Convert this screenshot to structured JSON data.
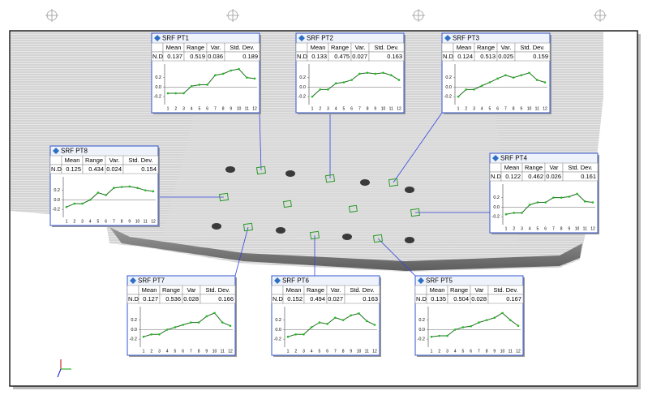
{
  "panels": [
    {
      "title": "SRF PT1",
      "headers": [
        "Mean",
        "Range",
        "Var.",
        "Std. Dev."
      ],
      "row_label": "N.D.",
      "row": [
        "0.137",
        "0.519",
        "0.036",
        "0.189"
      ],
      "chart": {
        "type": "line",
        "x": [
          1,
          2,
          3,
          4,
          5,
          6,
          7,
          8,
          9,
          10,
          11,
          12
        ],
        "values": [
          -0.13,
          -0.13,
          -0.13,
          0.02,
          0.05,
          0.05,
          0.25,
          0.28,
          0.35,
          0.38,
          0.2,
          0.18
        ],
        "color": "#1f6b1f",
        "ylim": [
          -0.3,
          0.45
        ],
        "yticks": [
          -0.2,
          {
            "value": 0,
            "label": "0.0"
          },
          0.2
        ]
      }
    },
    {
      "title": "SRF PT2",
      "headers": [
        "Mean",
        "Range",
        "Var.",
        "Std. Dev."
      ],
      "row_label": "N.D.",
      "row": [
        "0.133",
        "0.475",
        "0.027",
        "0.163"
      ],
      "chart": {
        "type": "line",
        "x": [
          1,
          2,
          3,
          4,
          5,
          6,
          7,
          8,
          9,
          10,
          11,
          12
        ],
        "values": [
          -0.2,
          -0.05,
          -0.05,
          0.08,
          0.1,
          0.15,
          0.28,
          0.3,
          0.28,
          0.3,
          0.25,
          0.15
        ],
        "color": "#1f6b1f",
        "ylim": [
          -0.3,
          0.45
        ],
        "yticks": [
          -0.2,
          {
            "value": 0,
            "label": "0.0"
          },
          0.2
        ]
      }
    },
    {
      "title": "SRF PT3",
      "headers": [
        "Mean",
        "Range",
        "Var.",
        "Std. Dev."
      ],
      "row_label": "N.D.",
      "row": [
        "0.124",
        "0.513",
        "0.025",
        "0.159"
      ],
      "chart": {
        "type": "line",
        "x": [
          1,
          2,
          3,
          4,
          5,
          6,
          7,
          8,
          9,
          10,
          11,
          12
        ],
        "values": [
          -0.2,
          -0.05,
          -0.05,
          0.03,
          0.1,
          0.18,
          0.25,
          0.2,
          0.25,
          0.3,
          0.15,
          0.1
        ],
        "color": "#1f6b1f",
        "ylim": [
          -0.3,
          0.45
        ],
        "yticks": [
          -0.2,
          {
            "value": 0,
            "label": "0.0"
          },
          0.2
        ]
      }
    },
    {
      "title": "SRF PT8",
      "headers": [
        "Mean",
        "Range",
        "Var.",
        "Std. Dev."
      ],
      "row_label": "N.D.",
      "row": [
        "0.125",
        "0.434",
        "0.024",
        "0.154"
      ],
      "chart": {
        "type": "line",
        "x": [
          1,
          2,
          3,
          4,
          5,
          6,
          7,
          8,
          9,
          10,
          11,
          12
        ],
        "values": [
          -0.15,
          -0.08,
          -0.08,
          0.0,
          0.15,
          0.1,
          0.25,
          0.27,
          0.28,
          0.25,
          0.2,
          0.18
        ],
        "color": "#1f6b1f",
        "ylim": [
          -0.3,
          0.45
        ],
        "yticks": [
          -0.2,
          {
            "value": 0,
            "label": "0.0"
          },
          0.2
        ]
      }
    },
    {
      "title": "SRF PT4",
      "headers": [
        "Mean",
        "Range",
        "Var",
        "Std. Dev."
      ],
      "row_label": "N.D.",
      "row": [
        "0.122",
        "0.462",
        "0.026",
        "0.161"
      ],
      "chart": {
        "type": "line",
        "x": [
          1,
          2,
          3,
          4,
          5,
          6,
          7,
          8,
          9,
          10,
          11,
          12
        ],
        "values": [
          -0.15,
          -0.12,
          -0.12,
          0.05,
          0.1,
          0.1,
          0.2,
          0.2,
          0.22,
          0.28,
          0.12,
          0.1
        ],
        "color": "#1f6b1f",
        "ylim": [
          -0.3,
          0.45
        ],
        "yticks": [
          -0.2,
          {
            "value": 0,
            "label": "0.0"
          },
          0.2
        ]
      }
    },
    {
      "title": "SRF PT7",
      "headers": [
        "Mean",
        "Range",
        "Var",
        "Std. Dev."
      ],
      "row_label": "N.D.",
      "row": [
        "0.127",
        "0.536",
        "0.028",
        "0.166"
      ],
      "chart": {
        "type": "line",
        "x": [
          1,
          2,
          3,
          4,
          5,
          6,
          7,
          8,
          9,
          10,
          11,
          12
        ],
        "values": [
          -0.15,
          -0.1,
          -0.1,
          0.0,
          0.05,
          0.1,
          0.15,
          0.15,
          0.28,
          0.35,
          0.15,
          0.08
        ],
        "color": "#1f6b1f",
        "ylim": [
          -0.3,
          0.45
        ],
        "yticks": [
          -0.2,
          {
            "value": 0,
            "label": "0.0"
          },
          0.2
        ]
      }
    },
    {
      "title": "SRF PT6",
      "headers": [
        "Mean",
        "Range",
        "Var.",
        "Std. Dev."
      ],
      "row_label": "N.D.",
      "row": [
        "0.152",
        "0.494",
        "0.027",
        "0.163"
      ],
      "chart": {
        "type": "line",
        "x": [
          1,
          2,
          3,
          4,
          5,
          6,
          7,
          8,
          9,
          10,
          11,
          12
        ],
        "values": [
          -0.15,
          -0.1,
          -0.1,
          0.05,
          0.15,
          0.12,
          0.25,
          0.2,
          0.3,
          0.34,
          0.18,
          0.1
        ],
        "color": "#1f6b1f",
        "ylim": [
          -0.3,
          0.45
        ],
        "yticks": [
          -0.2,
          {
            "value": 0,
            "label": "0.0"
          },
          0.2
        ]
      }
    },
    {
      "title": "SRF PT5",
      "headers": [
        "Mean",
        "Range",
        "Var",
        "Std. Dev."
      ],
      "row_label": "N.D.",
      "row": [
        "0.135",
        "0.504",
        "0.028",
        "0.167"
      ],
      "chart": {
        "type": "line",
        "x": [
          1,
          2,
          3,
          4,
          5,
          6,
          7,
          8,
          9,
          10,
          11,
          12
        ],
        "values": [
          -0.15,
          -0.13,
          -0.13,
          0.0,
          0.05,
          0.07,
          0.15,
          0.2,
          0.25,
          0.35,
          0.2,
          0.08
        ],
        "color": "#1f6b1f",
        "ylim": [
          -0.3,
          0.45
        ],
        "yticks": [
          -0.2,
          {
            "value": 0,
            "label": "0.0"
          },
          0.2
        ]
      }
    }
  ]
}
